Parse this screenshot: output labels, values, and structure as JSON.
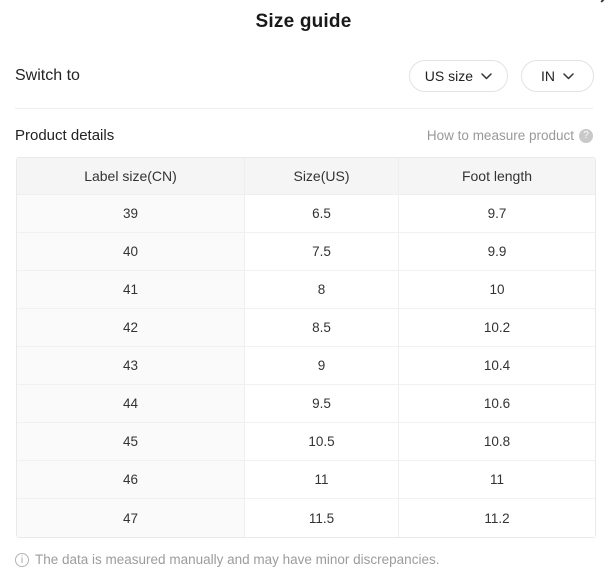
{
  "modal": {
    "title": "Size guide",
    "close_icon": "✕"
  },
  "switch_row": {
    "label": "Switch to",
    "buttons": [
      {
        "label": "US size"
      },
      {
        "label": "IN"
      }
    ]
  },
  "details_row": {
    "label": "Product details",
    "measure_link": "How to measure product",
    "help_icon": "?"
  },
  "table": {
    "headers": [
      "Label size(CN)",
      "Size(US)",
      "Foot length"
    ],
    "rows": [
      [
        "39",
        "6.5",
        "9.7"
      ],
      [
        "40",
        "7.5",
        "9.9"
      ],
      [
        "41",
        "8",
        "10"
      ],
      [
        "42",
        "8.5",
        "10.2"
      ],
      [
        "43",
        "9",
        "10.4"
      ],
      [
        "44",
        "9.5",
        "10.6"
      ],
      [
        "45",
        "10.5",
        "10.8"
      ],
      [
        "46",
        "11",
        "11"
      ],
      [
        "47",
        "11.5",
        "11.2"
      ]
    ]
  },
  "footer": {
    "info_icon": "i",
    "note": "The data is measured manually and may have minor discrepancies."
  },
  "colors": {
    "header_bg": "#f5f5f5",
    "first_col_bg": "#fafafa",
    "border": "#efefef",
    "muted_text": "#9c9c9c",
    "text": "#222222"
  }
}
